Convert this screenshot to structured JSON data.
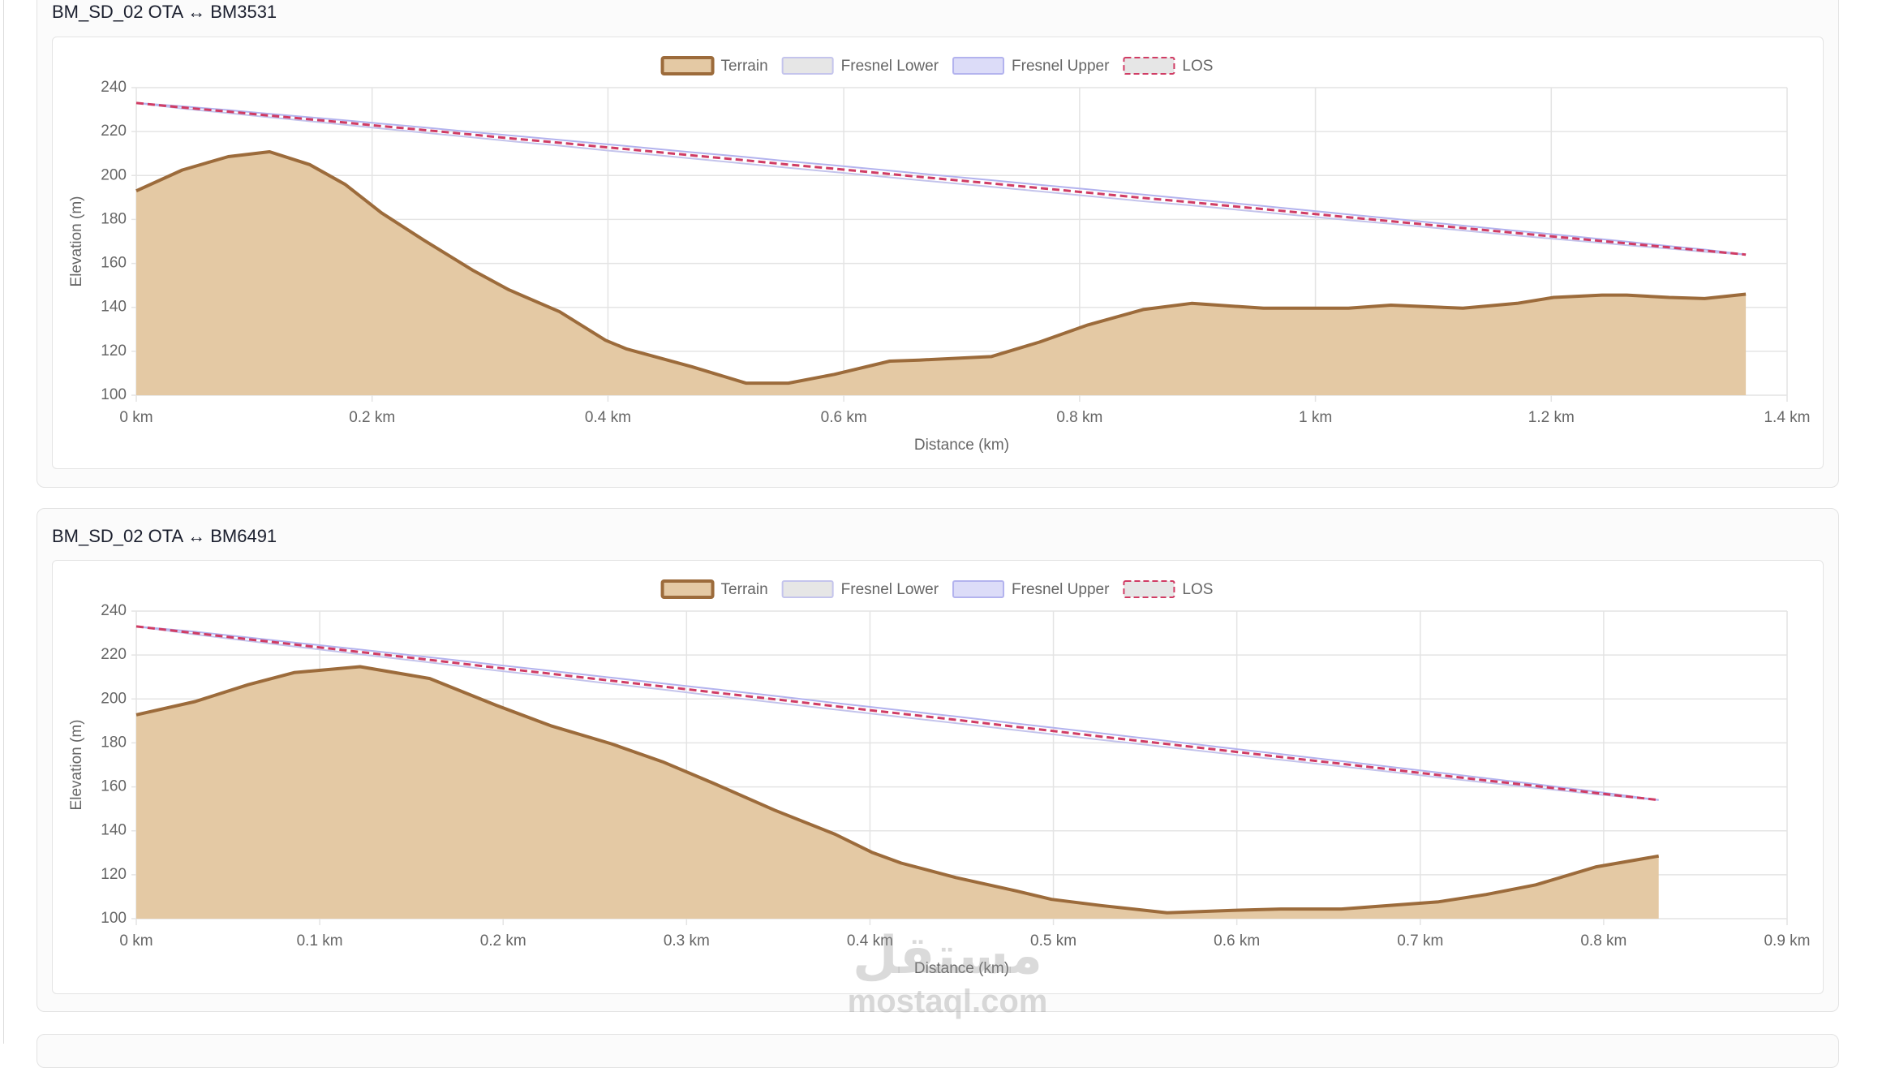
{
  "chart_data": [
    {
      "type": "line",
      "title": "BM_SD_02 OTA ↔ BM3531",
      "x_label": "Distance (km)",
      "y_label": "Elevation (m)",
      "x": [
        0,
        0.039,
        0.078,
        0.113,
        0.147,
        0.177,
        0.208,
        0.244,
        0.285,
        0.316,
        0.359,
        0.398,
        0.416,
        0.471,
        0.517,
        0.553,
        0.592,
        0.639,
        0.664,
        0.725,
        0.766,
        0.807,
        0.854,
        0.895,
        0.956,
        1.028,
        1.064,
        1.125,
        1.171,
        1.202,
        1.243,
        1.264,
        1.3,
        1.33,
        1.365
      ],
      "series": [
        {
          "name": "Terrain",
          "color": "#9c6b3b",
          "fill": "#e4c9a4",
          "values": [
            193,
            202.5,
            208.6,
            210.8,
            205,
            196,
            183,
            170.5,
            157,
            148,
            138,
            125,
            121,
            113,
            105.5,
            105.5,
            109.5,
            115.5,
            116,
            117.6,
            124.2,
            132,
            139,
            141.8,
            139.6,
            139.6,
            141,
            139.6,
            141.8,
            144.5,
            145.6,
            145.6,
            144.5,
            144,
            146
          ]
        },
        {
          "name": "Fresnel Lower",
          "color": "#c4c4ec",
          "fill": "#e6e6e6",
          "values": [
            233,
            230.5,
            228.4,
            226.5,
            224.7,
            223.1,
            221.4,
            219.5,
            217.4,
            215.7,
            213.6,
            211.5,
            210.6,
            207.8,
            205.4,
            203.5,
            201.6,
            199.2,
            197.9,
            194.9,
            192.8,
            190.7,
            188.3,
            186.4,
            183.3,
            179.7,
            178,
            175,
            172.7,
            171.2,
            169.3,
            168.3,
            166.7,
            165.3,
            164
          ]
        },
        {
          "name": "Fresnel Upper",
          "color": "#b3b3ee",
          "fill": "#dcdcf8",
          "values": [
            233,
            231.5,
            229.8,
            228.1,
            226.5,
            225.1,
            223.6,
            221.9,
            219.8,
            218.3,
            216.2,
            214.3,
            213.4,
            210.6,
            208.4,
            206.5,
            204.6,
            202.2,
            200.9,
            197.9,
            195.8,
            193.7,
            191.3,
            189.2,
            186.1,
            182.3,
            180.4,
            177.2,
            174.8,
            173.2,
            171,
            169.9,
            167.9,
            166.3,
            164
          ]
        },
        {
          "name": "LOS",
          "color": "#d03c64",
          "fill": "#e6e6e6",
          "dashed": true,
          "values": [
            233,
            231,
            229.1,
            227.3,
            225.6,
            224.1,
            222.5,
            220.7,
            218.6,
            217,
            214.9,
            212.9,
            212,
            209.2,
            206.9,
            205,
            203.1,
            200.7,
            199.4,
            196.4,
            194.3,
            192.2,
            189.8,
            187.8,
            184.7,
            181,
            179.2,
            176.1,
            173.8,
            172.2,
            170.2,
            169.1,
            167.3,
            165.8,
            164
          ]
        }
      ],
      "xlim": [
        0,
        1.4
      ],
      "xticks": [
        {
          "value": 0,
          "label": "0 km"
        },
        {
          "value": 0.2,
          "label": "0.2 km"
        },
        {
          "value": 0.4,
          "label": "0.4 km"
        },
        {
          "value": 0.6,
          "label": "0.6 km"
        },
        {
          "value": 0.8,
          "label": "0.8 km"
        },
        {
          "value": 1,
          "label": "1 km"
        },
        {
          "value": 1.2,
          "label": "1.2 km"
        },
        {
          "value": 1.4,
          "label": "1.4 km"
        }
      ],
      "ylim": [
        100,
        240
      ],
      "yticks": [
        100,
        120,
        140,
        160,
        180,
        200,
        220,
        240
      ],
      "grid": true,
      "legend": "top"
    },
    {
      "type": "line",
      "title": "BM_SD_02 OTA ↔ BM6491",
      "x_label": "Distance (km)",
      "y_label": "Elevation (m)",
      "x": [
        0,
        0.032,
        0.061,
        0.086,
        0.122,
        0.16,
        0.196,
        0.226,
        0.259,
        0.287,
        0.315,
        0.348,
        0.381,
        0.401,
        0.417,
        0.447,
        0.48,
        0.499,
        0.526,
        0.562,
        0.598,
        0.624,
        0.657,
        0.683,
        0.71,
        0.736,
        0.763,
        0.796,
        0.83
      ],
      "series": [
        {
          "name": "Terrain",
          "color": "#9c6b3b",
          "fill": "#e4c9a4",
          "values": [
            192.8,
            198.8,
            206.5,
            212,
            214.7,
            209.3,
            197.2,
            187.8,
            179.6,
            171.4,
            161.5,
            149.4,
            138.4,
            130.2,
            125.3,
            118.7,
            112.6,
            108.8,
            106,
            102.7,
            103.8,
            104.4,
            104.4,
            106,
            107.7,
            111,
            115.4,
            123.6,
            128.5
          ]
        },
        {
          "name": "Fresnel Lower",
          "color": "#c4c4ec",
          "fill": "#e6e6e6",
          "values": [
            233,
            229.4,
            226.4,
            223.9,
            220.3,
            216.6,
            213,
            210.2,
            206.9,
            204.3,
            201.5,
            198.4,
            195.2,
            193.3,
            191.8,
            189,
            185.8,
            184,
            181.4,
            178.1,
            174.7,
            172.3,
            169.3,
            166.9,
            164.3,
            161.9,
            159.6,
            156.6,
            154
          ]
        },
        {
          "name": "Fresnel Upper",
          "color": "#b3b3ee",
          "fill": "#dcdcf8",
          "values": [
            233,
            230.6,
            228,
            225.7,
            222.5,
            219,
            215.6,
            212.8,
            209.7,
            207.1,
            204.5,
            201.4,
            198.2,
            196.3,
            194.8,
            192,
            188.8,
            187,
            184.4,
            180.9,
            177.4,
            174.9,
            171.7,
            169.2,
            166.5,
            163.9,
            161.2,
            157.8,
            154
          ]
        },
        {
          "name": "LOS",
          "color": "#d03c64",
          "fill": "#e6e6e6",
          "dashed": true,
          "values": [
            233,
            230,
            227.2,
            224.8,
            221.4,
            217.8,
            214.3,
            211.5,
            208.3,
            205.7,
            203,
            199.9,
            196.7,
            194.8,
            193.3,
            190.5,
            187.3,
            185.5,
            182.9,
            179.5,
            176.1,
            173.6,
            170.5,
            168,
            165.4,
            162.9,
            160.4,
            157.2,
            154
          ]
        }
      ],
      "xlim": [
        0,
        0.9
      ],
      "xticks": [
        {
          "value": 0,
          "label": "0 km"
        },
        {
          "value": 0.1,
          "label": "0.1 km"
        },
        {
          "value": 0.2,
          "label": "0.2 km"
        },
        {
          "value": 0.3,
          "label": "0.3 km"
        },
        {
          "value": 0.4,
          "label": "0.4 km"
        },
        {
          "value": 0.5,
          "label": "0.5 km"
        },
        {
          "value": 0.6,
          "label": "0.6 km"
        },
        {
          "value": 0.7,
          "label": "0.7 km"
        },
        {
          "value": 0.8,
          "label": "0.8 km"
        },
        {
          "value": 0.9,
          "label": "0.9 km"
        }
      ],
      "ylim": [
        100,
        240
      ],
      "yticks": [
        100,
        120,
        140,
        160,
        180,
        200,
        220,
        240
      ],
      "grid": true,
      "legend": "top"
    }
  ],
  "watermark": {
    "logo": "مستقل",
    "site": "mostaql.com"
  }
}
